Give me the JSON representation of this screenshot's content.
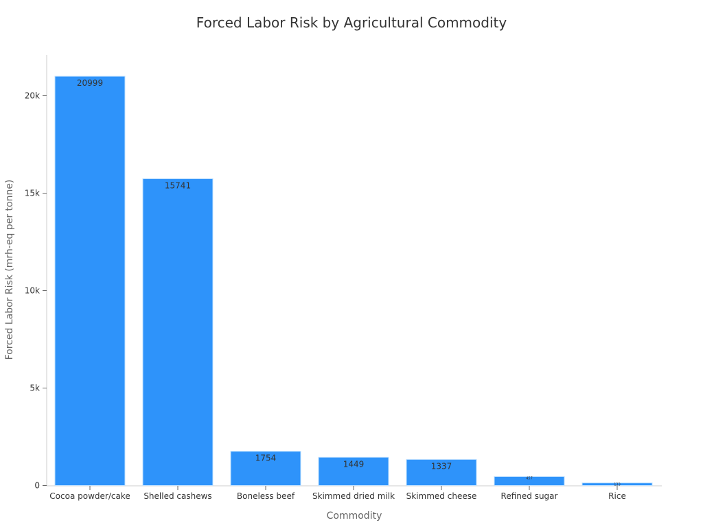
{
  "chart_data": {
    "type": "bar",
    "title": "Forced Labor Risk by Agricultural Commodity",
    "xlabel": "Commodity",
    "ylabel": "Forced Labor Risk (mrh-eq per tonne)",
    "categories": [
      "Cocoa powder/cake",
      "Shelled cashews",
      "Boneless beef",
      "Skimmed dried milk",
      "Skimmed cheese",
      "Refined sugar",
      "Rice"
    ],
    "values": [
      20999,
      15741,
      1754,
      1449,
      1337,
      457,
      133
    ],
    "ylim": [
      0,
      22000
    ],
    "yticks": [
      0,
      5000,
      10000,
      15000,
      20000
    ],
    "ytick_labels": [
      "0",
      "5k",
      "10k",
      "15k",
      "20k"
    ],
    "bar_color": "#2e93fa",
    "grid": false
  }
}
